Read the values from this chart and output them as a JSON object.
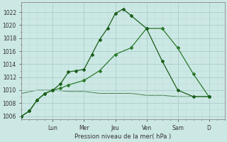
{
  "bg_color": "#cce8e4",
  "grid_major_color": "#aacccc",
  "grid_minor_color": "#bbdddd",
  "line_color1": "#1a5e1a",
  "line_color2": "#2a7a2a",
  "line_color3": "#1a5e1a",
  "ylabel": "Pression niveau de la mer( hPa )",
  "ylim": [
    1005.5,
    1023.5
  ],
  "yticks": [
    1006,
    1008,
    1010,
    1012,
    1014,
    1016,
    1018,
    1020,
    1022
  ],
  "day_labels": [
    "Lun",
    "Mer",
    "Jeu",
    "Ven",
    "Sam",
    "D"
  ],
  "day_positions": [
    24,
    48,
    72,
    96,
    120,
    144
  ],
  "xlim": [
    0,
    156
  ],
  "xminor_step": 6,
  "line1_x": [
    0,
    6,
    12,
    18,
    24,
    30,
    36,
    42,
    48,
    54,
    60,
    66,
    72,
    78,
    84,
    96,
    108,
    120,
    132,
    144
  ],
  "line1_y": [
    1006.0,
    1006.8,
    1008.5,
    1009.5,
    1010.0,
    1011.0,
    1012.8,
    1013.0,
    1013.2,
    1015.5,
    1017.8,
    1019.5,
    1021.8,
    1022.5,
    1021.5,
    1019.5,
    1014.5,
    1010.0,
    1009.0,
    1009.0
  ],
  "line2_x": [
    0,
    6,
    12,
    18,
    24,
    30,
    36,
    48,
    60,
    72,
    84,
    96,
    108,
    120,
    132,
    144
  ],
  "line2_y": [
    1006.0,
    1006.8,
    1008.5,
    1009.5,
    1010.0,
    1010.3,
    1010.8,
    1011.5,
    1013.0,
    1015.5,
    1016.5,
    1019.5,
    1019.5,
    1016.5,
    1012.5,
    1009.0
  ],
  "line3_x": [
    0,
    12,
    24,
    36,
    48,
    60,
    72,
    84,
    96,
    108,
    120,
    132,
    144
  ],
  "line3_y": [
    1009.5,
    1010.0,
    1010.0,
    1009.8,
    1009.8,
    1009.5,
    1009.5,
    1009.5,
    1009.2,
    1009.2,
    1009.0,
    1009.0,
    1009.0
  ]
}
